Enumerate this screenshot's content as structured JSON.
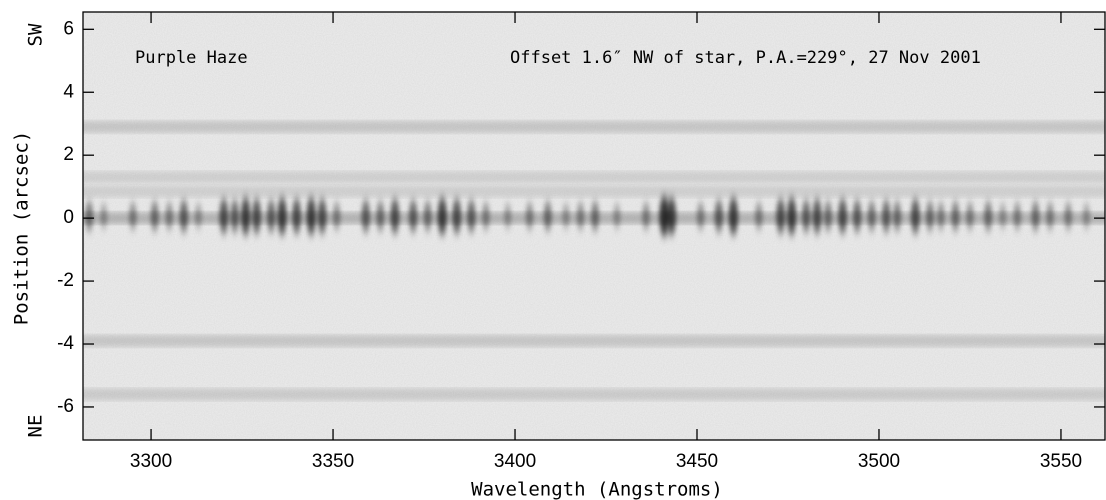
{
  "chart_data": {
    "type": "spectrum-image",
    "title": "Purple Haze",
    "subtitle": "Offset 1.6″ NW of star,  P.A.=229°,  27 Nov 2001",
    "x_label": "Wavelength (Angstroms)",
    "y_label": "Position (arcsec)",
    "y_top_label": "SW",
    "y_bottom_label": "NE",
    "xlim": [
      3281.3,
      3562.1
    ],
    "ylim": [
      -7.05,
      6.55
    ],
    "xticks": [
      3300,
      3350,
      3400,
      3450,
      3500,
      3550
    ],
    "yticks": [
      -6,
      -4,
      -2,
      0,
      2,
      4,
      6
    ],
    "color": "#000000",
    "rows": {
      "y": [
        2.9,
        1.3,
        0.85,
        0,
        -3.9,
        -5.6
      ],
      "values": [
        0.14,
        0.1,
        0.1,
        0.22,
        0.14,
        0.12
      ]
    },
    "features": {
      "x": [
        3283,
        3287,
        3295,
        3301,
        3305,
        3309,
        3313,
        3320,
        3323,
        3326,
        3329,
        3333,
        3336,
        3340,
        3344,
        3347,
        3351,
        3359,
        3363,
        3367,
        3372,
        3376,
        3380,
        3384,
        3388,
        3392,
        3398,
        3404,
        3409,
        3414,
        3418,
        3422,
        3428,
        3436,
        3441,
        3443,
        3451,
        3456,
        3460,
        3467,
        3473,
        3476,
        3480,
        3483,
        3486,
        3490,
        3494,
        3498,
        3502,
        3505,
        3510,
        3514,
        3517,
        3521,
        3525,
        3530,
        3534,
        3538,
        3543,
        3547,
        3552,
        3557
      ],
      "values": [
        0.6,
        0.4,
        0.5,
        0.6,
        0.5,
        0.7,
        0.4,
        0.8,
        0.7,
        0.9,
        0.8,
        0.7,
        0.9,
        0.8,
        0.9,
        0.8,
        0.5,
        0.7,
        0.6,
        0.8,
        0.7,
        0.6,
        0.9,
        0.8,
        0.7,
        0.5,
        0.4,
        0.5,
        0.6,
        0.4,
        0.5,
        0.6,
        0.4,
        0.5,
        1.0,
        0.9,
        0.5,
        0.7,
        0.9,
        0.5,
        0.8,
        0.9,
        0.7,
        0.8,
        0.6,
        0.8,
        0.7,
        0.6,
        0.7,
        0.6,
        0.8,
        0.6,
        0.5,
        0.6,
        0.5,
        0.6,
        0.4,
        0.5,
        0.6,
        0.5,
        0.5,
        0.4
      ]
    }
  }
}
